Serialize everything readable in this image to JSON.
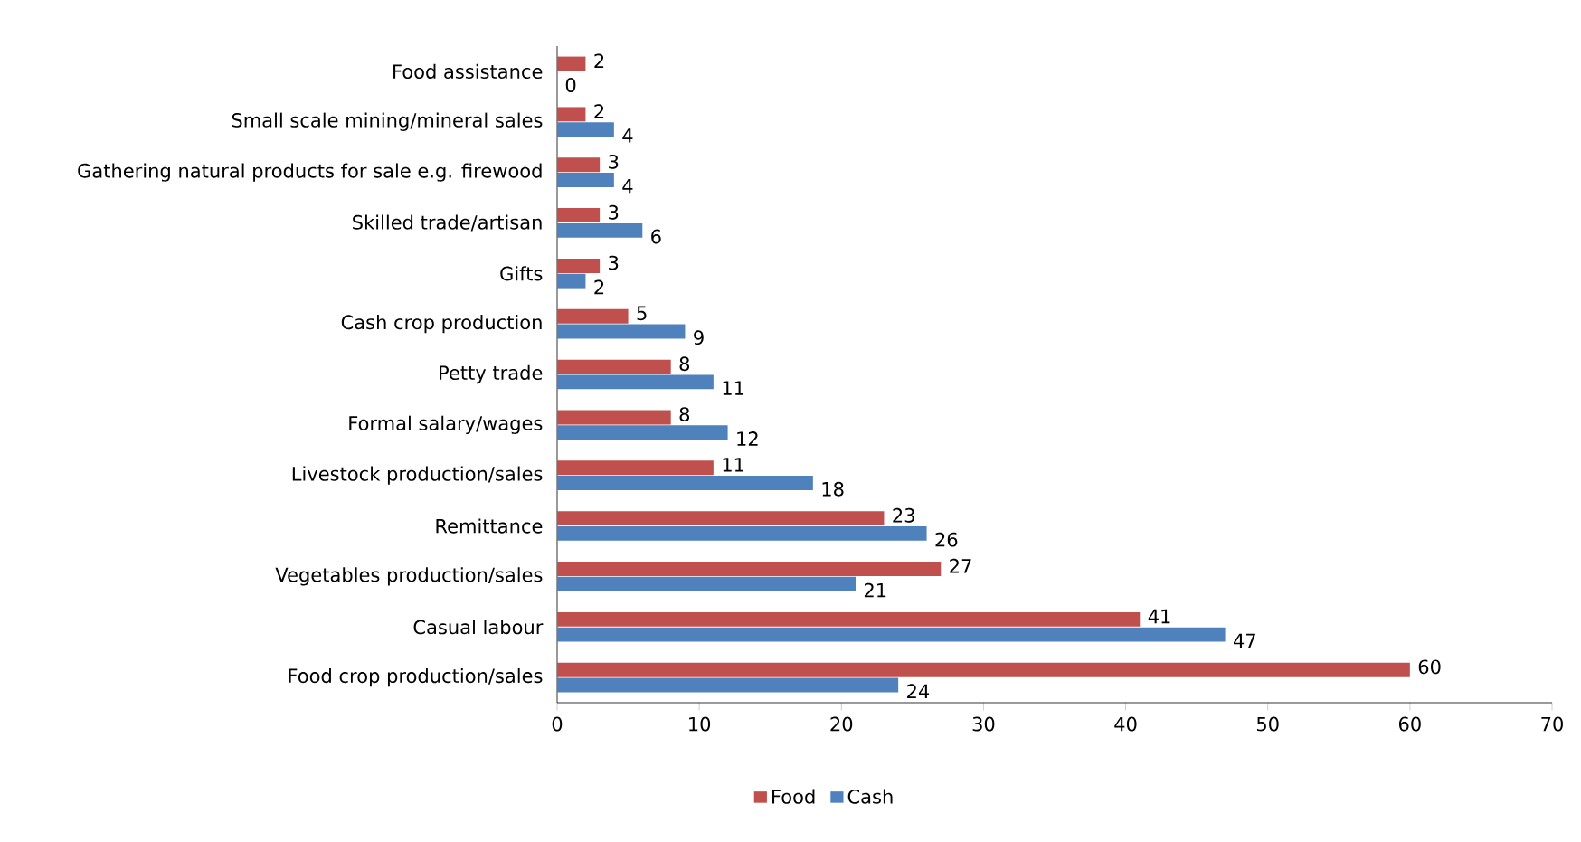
{
  "chart_data": {
    "type": "bar",
    "orientation": "horizontal",
    "categories": [
      "Food assistance",
      "Small scale mining/mineral sales",
      "Gathering natural products for sale e.g. firewood",
      "Skilled trade/artisan",
      "Gifts",
      "Cash crop production",
      "Petty trade",
      "Formal salary/wages",
      "Livestock production/sales",
      "Remittance",
      "Vegetables production/sales",
      "Casual labour",
      "Food crop production/sales"
    ],
    "series": [
      {
        "name": "Food",
        "color": "#c0504d",
        "values": [
          2,
          2,
          3,
          3,
          3,
          5,
          8,
          8,
          11,
          23,
          27,
          41,
          60
        ]
      },
      {
        "name": "Cash",
        "color": "#4f81bd",
        "values": [
          0,
          4,
          4,
          6,
          2,
          9,
          11,
          12,
          18,
          26,
          21,
          47,
          24
        ]
      }
    ],
    "xlim": [
      0,
      70
    ],
    "xticks": [
      0,
      10,
      20,
      30,
      40,
      50,
      60,
      70
    ],
    "data_labels": true,
    "legend": "bottom"
  }
}
